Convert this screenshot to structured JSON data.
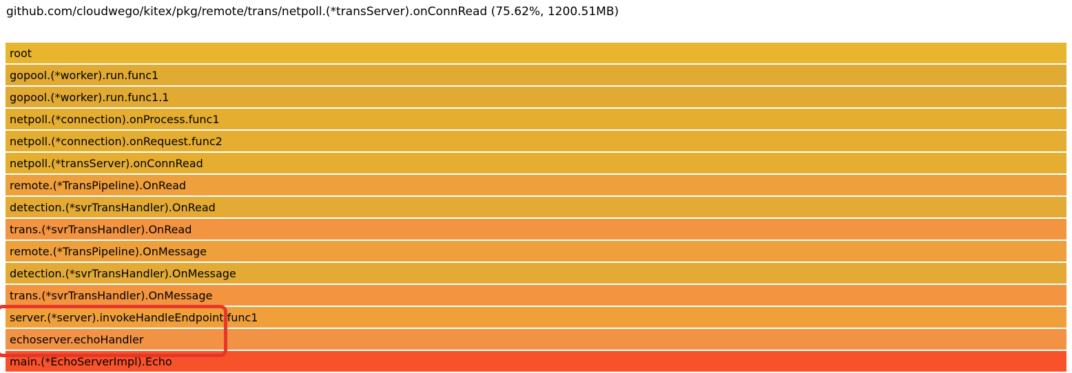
{
  "header": {
    "title": "github.com/cloudwego/kitex/pkg/remote/trans/netpoll.(*transServer).onConnRead (75.62%, 1200.51MB)"
  },
  "chart_data": {
    "type": "flamegraph",
    "title": "github.com/cloudwego/kitex/pkg/remote/trans/netpoll.(*transServer).onConnRead",
    "selected_frame": {
      "name": "github.com/cloudwego/kitex/pkg/remote/trans/netpoll.(*transServer).onConnRead",
      "percent": "75.62%",
      "value": "1200.51MB"
    },
    "frames": [
      {
        "label": "root",
        "color": "#e8b52e",
        "width_percent": 100
      },
      {
        "label": "gopool.(*worker).run.func1",
        "color": "#e1aa33",
        "width_percent": 100
      },
      {
        "label": "gopool.(*worker).run.func1.1",
        "color": "#e1aa33",
        "width_percent": 100
      },
      {
        "label": "netpoll.(*connection).onProcess.func1",
        "color": "#e5ae31",
        "width_percent": 100
      },
      {
        "label": "netpoll.(*connection).onRequest.func2",
        "color": "#e5ae31",
        "width_percent": 100
      },
      {
        "label": "netpoll.(*transServer).onConnRead",
        "color": "#e5ae31",
        "width_percent": 100
      },
      {
        "label": "remote.(*TransPipeline).OnRead",
        "color": "#eea03c",
        "width_percent": 100
      },
      {
        "label": "detection.(*svrTransHandler).OnRead",
        "color": "#e3ab35",
        "width_percent": 100
      },
      {
        "label": "trans.(*svrTransHandler).OnRead",
        "color": "#f29440",
        "width_percent": 100
      },
      {
        "label": "remote.(*TransPipeline).OnMessage",
        "color": "#eea03c",
        "width_percent": 100
      },
      {
        "label": "detection.(*svrTransHandler).OnMessage",
        "color": "#e3ab35",
        "width_percent": 100
      },
      {
        "label": "trans.(*svrTransHandler).OnMessage",
        "color": "#f29440",
        "width_percent": 100
      },
      {
        "label": "server.(*server).invokeHandleEndpoint.func1",
        "color": "#efa03a",
        "width_percent": 100
      },
      {
        "label": "echoserver.echoHandler",
        "color": "#f19245",
        "width_percent": 100
      },
      {
        "label": "main.(*EchoServerImpl).Echo",
        "color": "#f8522b",
        "width_percent": 100
      }
    ],
    "annotation": {
      "shape": "rounded-rectangle",
      "color": "#e8372a",
      "highlighted_frames": [
        "server.(*server).invokeHandleEndpoint.func1",
        "echoserver.echoHandler"
      ]
    },
    "legend_position": "none",
    "grid": false
  }
}
